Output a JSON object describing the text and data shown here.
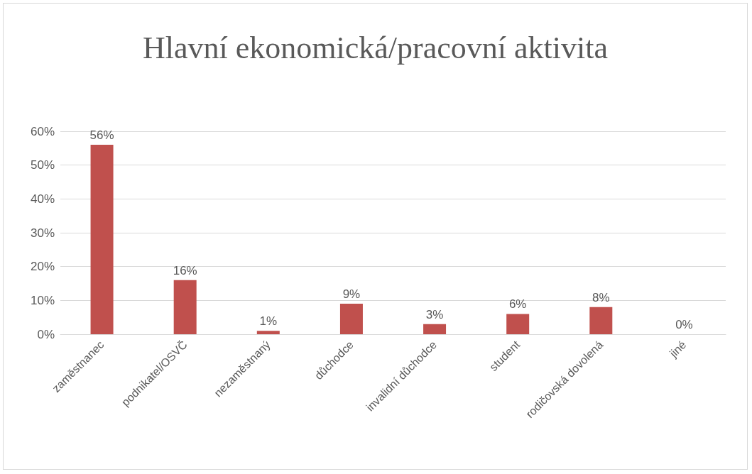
{
  "chart_data": {
    "type": "bar",
    "title": "Hlavní ekonomická/pracovní aktivita",
    "categories": [
      "zaměstnanec",
      "podnikatel/OSVČ",
      "nezaměstnaný",
      "důchodce",
      "invalidní důchodce",
      "student",
      "rodičovská dovolená",
      "jiné"
    ],
    "values": [
      56,
      16,
      1,
      9,
      3,
      6,
      8,
      0
    ],
    "value_labels": [
      "56%",
      "16%",
      "1%",
      "9%",
      "3%",
      "6%",
      "8%",
      "0%"
    ],
    "color": "#c0504d",
    "ylim": [
      0,
      60
    ],
    "yticks": [
      {
        "value": 0,
        "label": "0%"
      },
      {
        "value": 10,
        "label": "10%"
      },
      {
        "value": 20,
        "label": "20%"
      },
      {
        "value": 30,
        "label": "30%"
      },
      {
        "value": 40,
        "label": "40%"
      },
      {
        "value": 50,
        "label": "50%"
      },
      {
        "value": 60,
        "label": "60%"
      }
    ],
    "grid": "y"
  }
}
